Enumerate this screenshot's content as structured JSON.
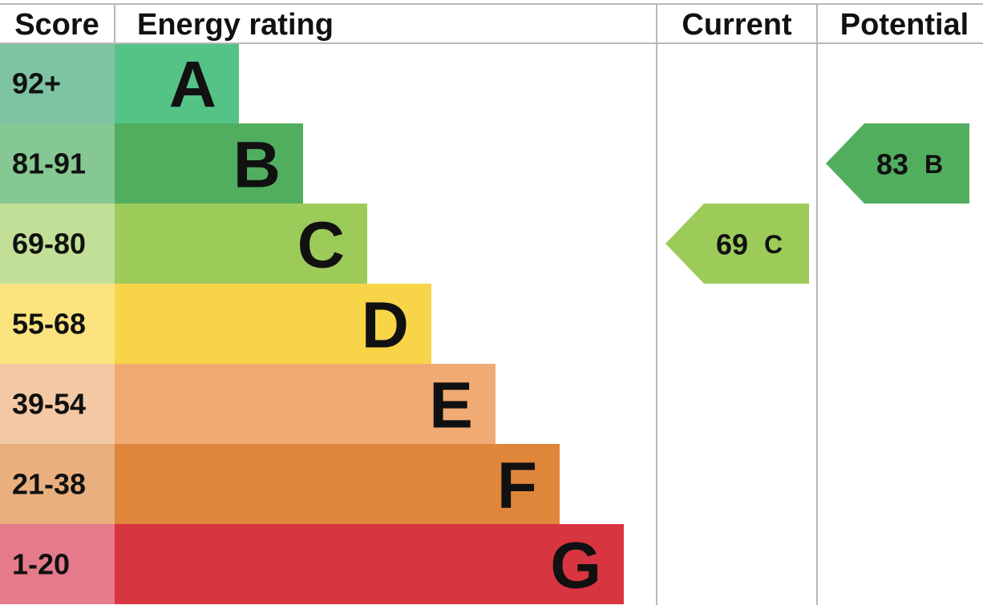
{
  "header": {
    "score": "Score",
    "rating": "Energy rating",
    "current": "Current",
    "potential": "Potential"
  },
  "bands": [
    {
      "score": "92+",
      "letter": "A",
      "color": "#55c385",
      "score_color": "#7ec4a2"
    },
    {
      "score": "81-91",
      "letter": "B",
      "color": "#52ae5f",
      "score_color": "#86c893"
    },
    {
      "score": "69-80",
      "letter": "C",
      "color": "#9dcb5a",
      "score_color": "#c2df97"
    },
    {
      "score": "55-68",
      "letter": "D",
      "color": "#f8d448",
      "score_color": "#fbe47f"
    },
    {
      "score": "39-54",
      "letter": "E",
      "color": "#f0ab74",
      "score_color": "#f3c8a4"
    },
    {
      "score": "21-38",
      "letter": "F",
      "color": "#e0863b",
      "score_color": "#eaaf7e"
    },
    {
      "score": "1-20",
      "letter": "G",
      "color": "#d7353f",
      "score_color": "#e57a8a"
    }
  ],
  "current": {
    "value": 69,
    "letter": "C"
  },
  "potential": {
    "value": 83,
    "letter": "B"
  }
}
